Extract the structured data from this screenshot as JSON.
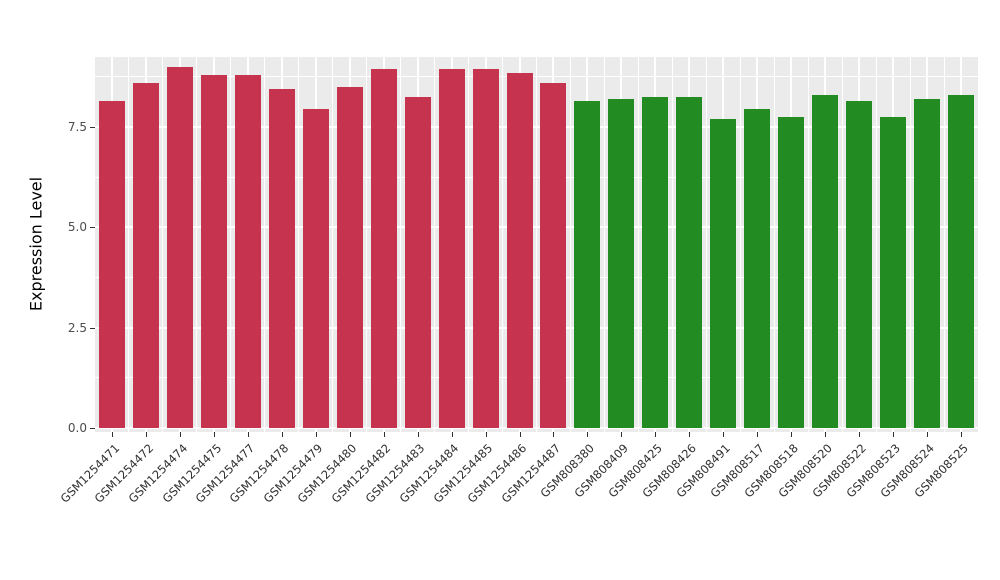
{
  "chart_data": {
    "type": "bar",
    "title": "",
    "xlabel": "",
    "ylabel": "Expression Level",
    "ylim": [
      0,
      9.0
    ],
    "yticks": [
      0.0,
      2.5,
      5.0,
      7.5
    ],
    "ytick_labels": [
      "0.0",
      "2.5",
      "5.0",
      "7.5"
    ],
    "grid": "on",
    "legend": "none",
    "panel_background": "#EBEBEB",
    "grid_color": "#FFFFFF",
    "categories": [
      "GSM1254471",
      "GSM1254472",
      "GSM1254474",
      "GSM1254475",
      "GSM1254477",
      "GSM1254478",
      "GSM1254479",
      "GSM1254480",
      "GSM1254482",
      "GSM1254483",
      "GSM1254484",
      "GSM1254485",
      "GSM1254486",
      "GSM1254487",
      "GSM808380",
      "GSM808409",
      "GSM808425",
      "GSM808426",
      "GSM808491",
      "GSM808517",
      "GSM808518",
      "GSM808520",
      "GSM808522",
      "GSM808523",
      "GSM808524",
      "GSM808525"
    ],
    "values": [
      8.15,
      8.6,
      9.0,
      8.8,
      8.8,
      8.45,
      7.95,
      8.5,
      8.95,
      8.25,
      8.95,
      8.95,
      8.85,
      8.6,
      8.15,
      8.2,
      8.25,
      8.25,
      7.7,
      7.95,
      7.75,
      8.3,
      8.15,
      7.75,
      8.2,
      8.3
    ],
    "groups": [
      "group1",
      "group1",
      "group1",
      "group1",
      "group1",
      "group1",
      "group1",
      "group1",
      "group1",
      "group1",
      "group1",
      "group1",
      "group1",
      "group1",
      "group2",
      "group2",
      "group2",
      "group2",
      "group2",
      "group2",
      "group2",
      "group2",
      "group2",
      "group2",
      "group2",
      "group2"
    ],
    "group_colors": {
      "group1": "#C5334E",
      "group2": "#228B22"
    }
  }
}
